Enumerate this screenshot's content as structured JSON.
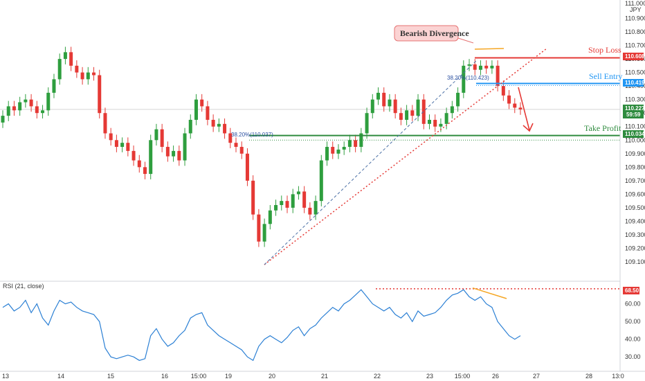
{
  "header": {
    "price_axis_top": "111.000",
    "currency": "JPY"
  },
  "chart_data": {
    "type": "candlestick",
    "price_ticks": [
      "110.900",
      "110.800",
      "110.700",
      "110.600",
      "110.500",
      "110.400",
      "110.300",
      "110.200",
      "110.100",
      "110.000",
      "109.900",
      "109.800",
      "109.700",
      "109.600",
      "109.500",
      "109.400",
      "109.300",
      "109.200",
      "109.100"
    ],
    "x_ticks": [
      "13",
      "14",
      "15",
      "16",
      "15:00",
      "19",
      "20",
      "21",
      "22",
      "23",
      "15:00",
      "26",
      "27",
      "28",
      "13:0"
    ],
    "close_price": [
      110.18,
      110.25,
      110.22,
      110.28,
      110.3,
      110.25,
      110.2,
      110.22,
      110.35,
      110.45,
      110.6,
      110.65,
      110.55,
      110.5,
      110.45,
      110.5,
      110.48,
      110.2,
      110.05,
      110.0,
      109.95,
      109.98,
      109.92,
      109.85,
      109.8,
      109.75,
      110.0,
      110.08,
      109.95,
      109.88,
      109.92,
      109.85,
      110.05,
      110.15,
      110.3,
      110.25,
      110.15,
      110.1,
      110.12,
      110.05,
      109.98,
      109.95,
      109.9,
      109.7,
      109.45,
      109.25,
      109.38,
      109.48,
      109.52,
      109.55,
      109.5,
      109.6,
      109.62,
      109.5,
      109.45,
      109.55,
      109.85,
      109.95,
      109.9,
      109.93,
      109.95,
      110.0,
      109.95,
      110.05,
      110.2,
      110.3,
      110.35,
      110.25,
      110.3,
      110.2,
      110.15,
      110.22,
      110.18,
      110.3,
      110.12,
      110.15,
      110.1,
      110.12,
      110.2,
      110.25,
      110.35,
      110.55,
      110.56,
      110.52,
      110.55,
      110.53,
      110.55,
      110.4,
      110.33,
      110.27,
      110.24,
      110.227
    ],
    "rsi_label": "RSI (21, close)",
    "rsi_ticks": [
      "60.00",
      "50.00",
      "40.00",
      "30.00"
    ],
    "rsi_values": [
      58,
      60,
      56,
      58,
      62,
      55,
      60,
      52,
      48,
      56,
      62,
      60,
      61,
      58,
      56,
      55,
      54,
      50,
      35,
      30,
      29,
      30,
      31,
      30,
      28,
      29,
      42,
      46,
      40,
      36,
      38,
      42,
      45,
      52,
      54,
      55,
      48,
      45,
      42,
      40,
      38,
      36,
      34,
      30,
      28,
      36,
      40,
      42,
      40,
      38,
      41,
      45,
      47,
      42,
      46,
      48,
      52,
      55,
      58,
      56,
      60,
      62,
      65,
      68,
      64,
      60,
      58,
      56,
      58,
      54,
      52,
      55,
      50,
      56,
      53,
      54,
      55,
      58,
      62,
      65,
      66,
      68,
      64,
      62,
      64,
      60,
      58,
      50,
      46,
      42,
      40,
      42
    ]
  },
  "annotations": {
    "bearish_divergence": "Bearish Divergence",
    "stop_loss": "Stop Loss",
    "sell_entry": "Sell Entry",
    "take_profit": "Take Profit",
    "fib_upper": "38.20%(110.423)",
    "fib_lower": "38.20%(110.037)"
  },
  "price_tags": {
    "stop_loss": "110.608",
    "sell_entry": "110.419",
    "current": "110.227",
    "countdown": "59:59",
    "take_profit": "110.034",
    "rsi_level": "68.50"
  },
  "colors": {
    "up": "#26a69a",
    "up_body": "#2e9e3e",
    "down": "#e53935",
    "stop": "#e53935",
    "entry": "#2196f3",
    "profit": "#2e8b3e",
    "rsi": "#2a7fd4",
    "divergence": "#f5a623"
  }
}
